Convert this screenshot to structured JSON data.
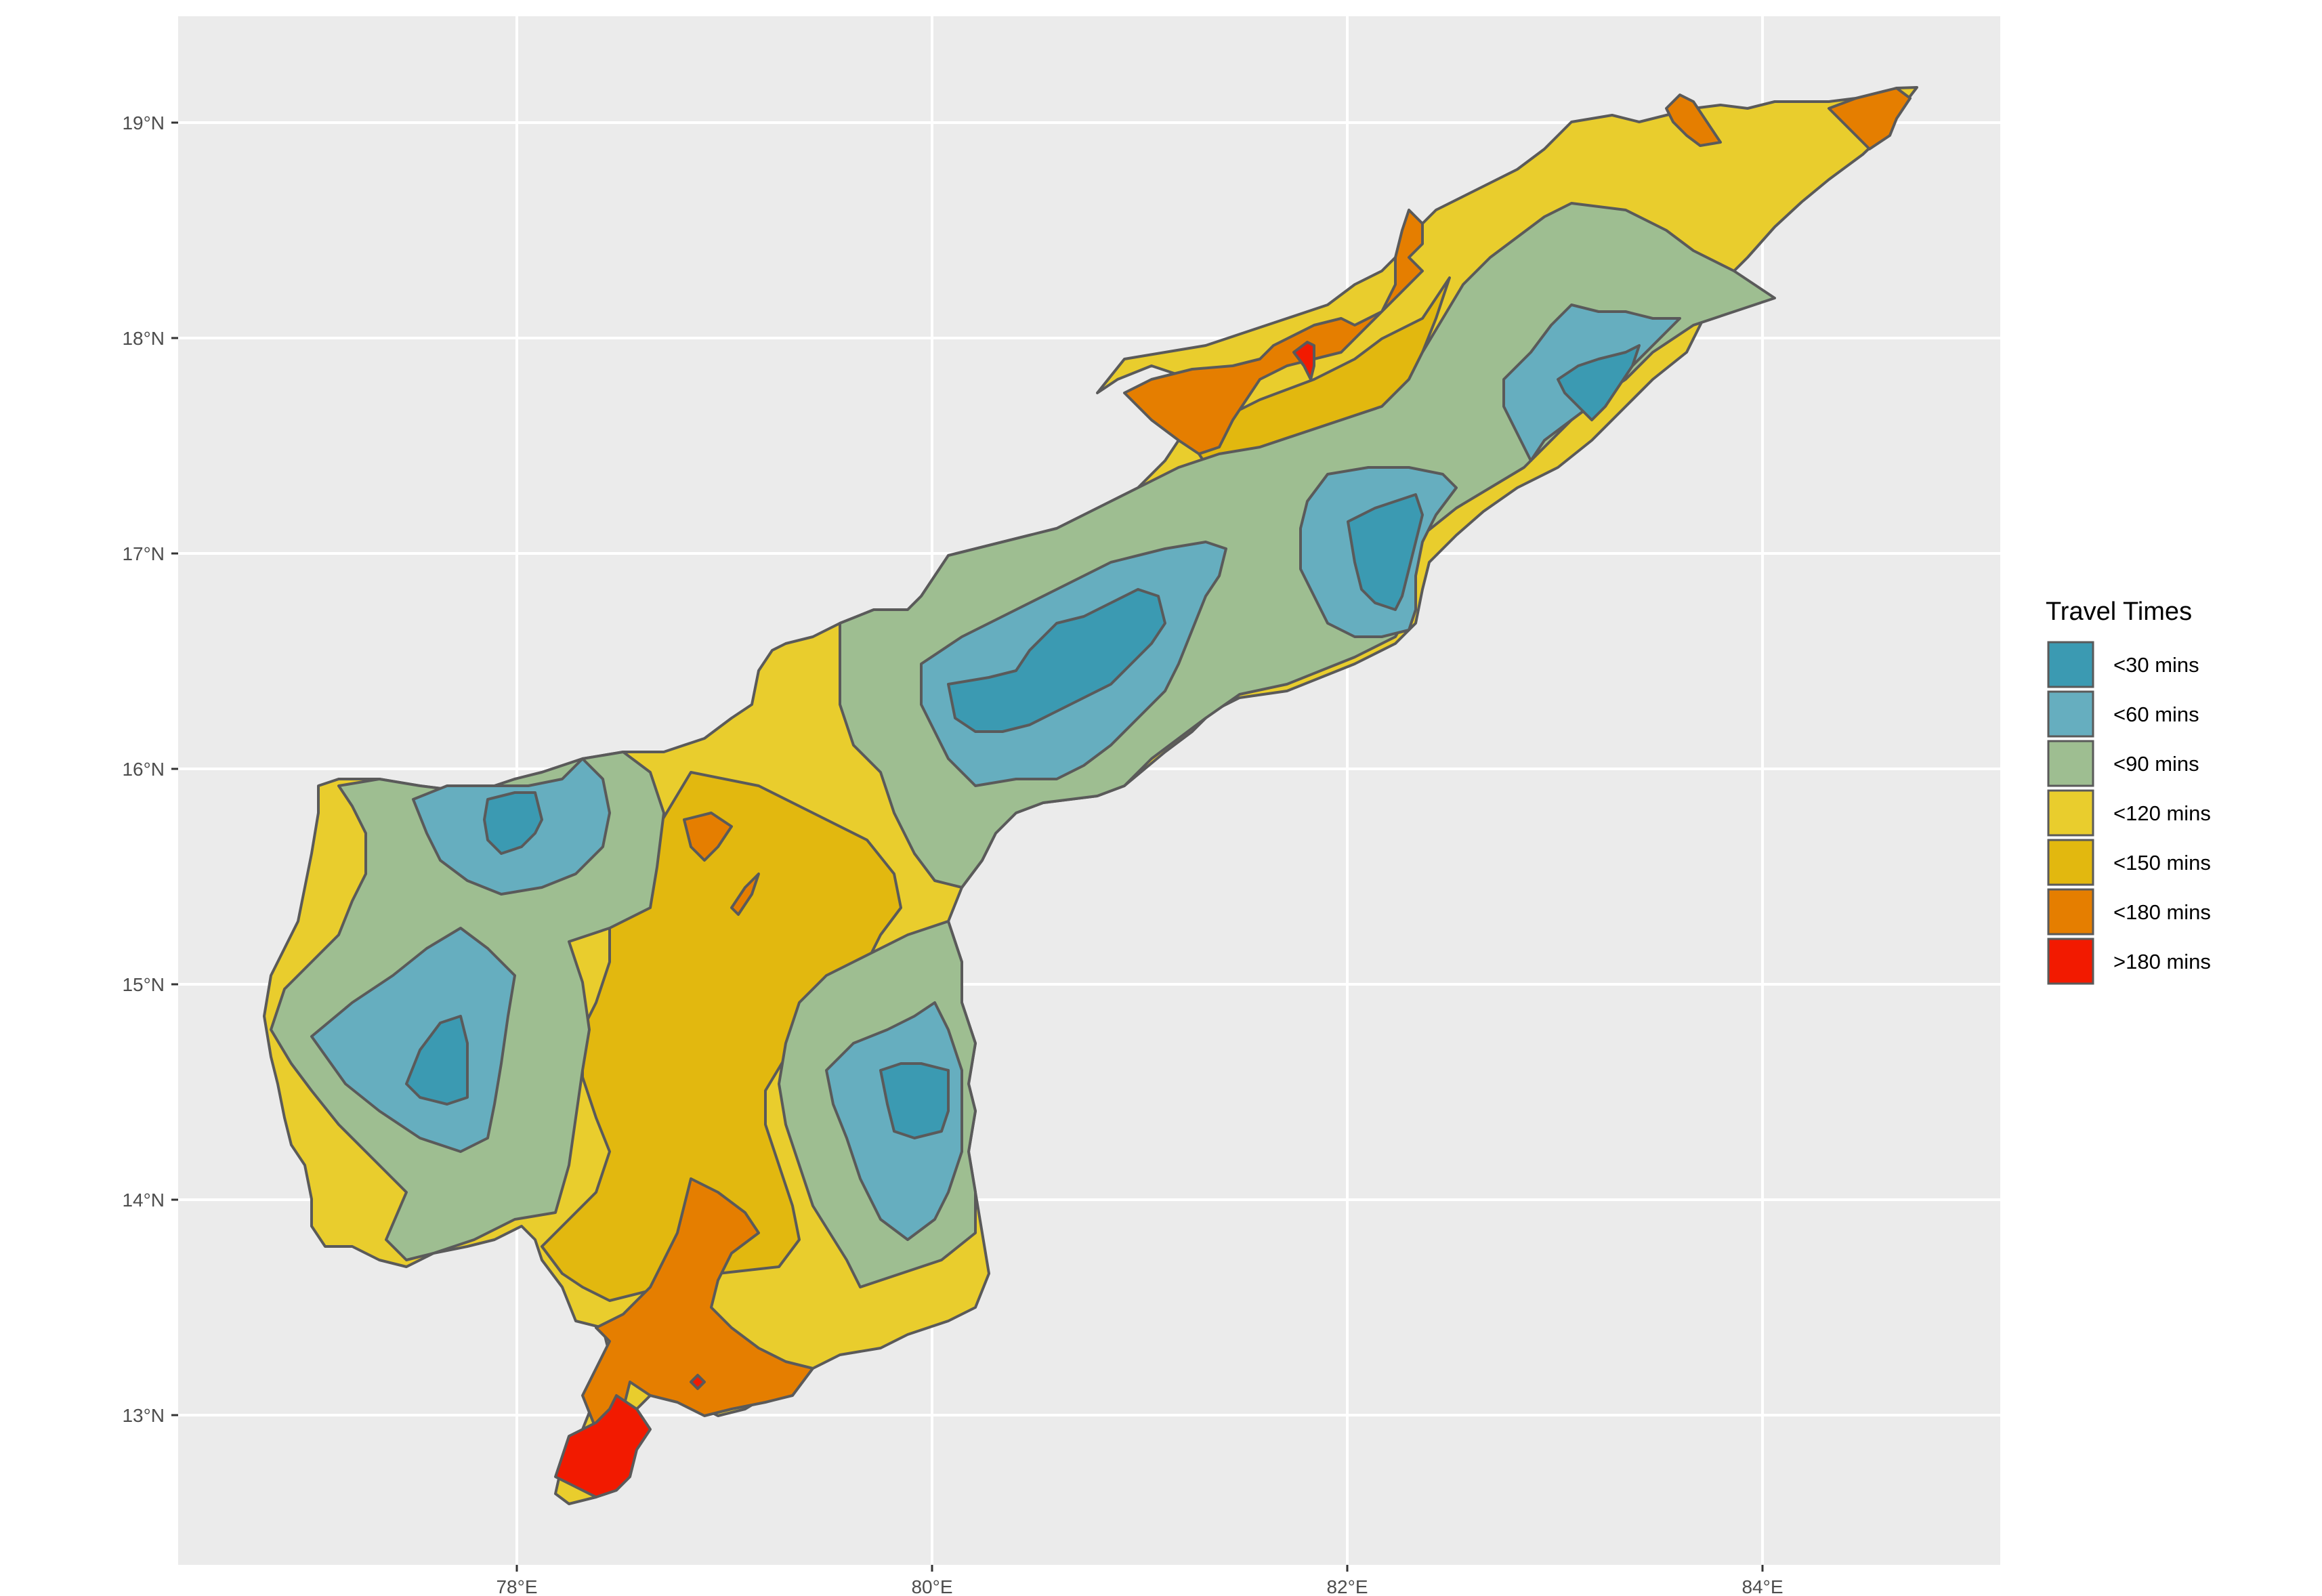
{
  "chart_data": {
    "type": "choropleth-contour",
    "title": "",
    "xlabel": "",
    "ylabel": "",
    "x_ticks": [
      "78°E",
      "80°E",
      "82°E",
      "84°E"
    ],
    "x_tick_values": [
      78,
      80,
      82,
      84
    ],
    "y_ticks": [
      "13°N",
      "14°N",
      "15°N",
      "16°N",
      "17°N",
      "18°N",
      "19°N"
    ],
    "y_tick_values": [
      13,
      14,
      15,
      16,
      17,
      18,
      19
    ],
    "xlim": [
      76.35,
      85.15
    ],
    "ylim": [
      12.35,
      19.5
    ],
    "grid": true,
    "legend_position": "right",
    "legend": {
      "title": "Travel Times",
      "items": [
        {
          "label": "<30 mins",
          "color": "#3b9ab2"
        },
        {
          "label": "<60 mins",
          "color": "#66aebf"
        },
        {
          "label": "<90 mins",
          "color": "#9ebe91"
        },
        {
          "label": "<120 mins",
          "color": "#e9cd2d"
        },
        {
          "label": "<150 mins",
          "color": "#e2b80f"
        },
        {
          "label": "<180 mins",
          "color": "#e57e00"
        },
        {
          "label": ">180 mins",
          "color": "#f21a00"
        }
      ]
    },
    "zones": [
      {
        "class": ">180 mins",
        "area": "south tip near 12.8°N 78.4°E"
      },
      {
        "class": "<180 mins",
        "area": "south near 13.3°N 78.9°E"
      },
      {
        "class": "<180 mins",
        "area": "northeast near 17.7°N 81.6°E"
      },
      {
        "class": "<180 mins",
        "area": "far northeast coast near 19°N 84.6°E"
      },
      {
        "class": "<30 mins",
        "area": "Krishna delta near 16.4°N 80.7°E"
      },
      {
        "class": "<30 mins",
        "area": "East Godavari near 17°N 82.1°E"
      },
      {
        "class": "<30 mins",
        "area": "Visakhapatnam near 17.8°N 83.3°E"
      },
      {
        "class": "<30 mins",
        "area": "Nellore near 14.5°N 80°E"
      },
      {
        "class": "<30 mins",
        "area": "Kadapa near 14.7°N 77.5°E"
      },
      {
        "class": "<30 mins",
        "area": "Kurnool near 15.8°N 77.9°E"
      }
    ]
  }
}
